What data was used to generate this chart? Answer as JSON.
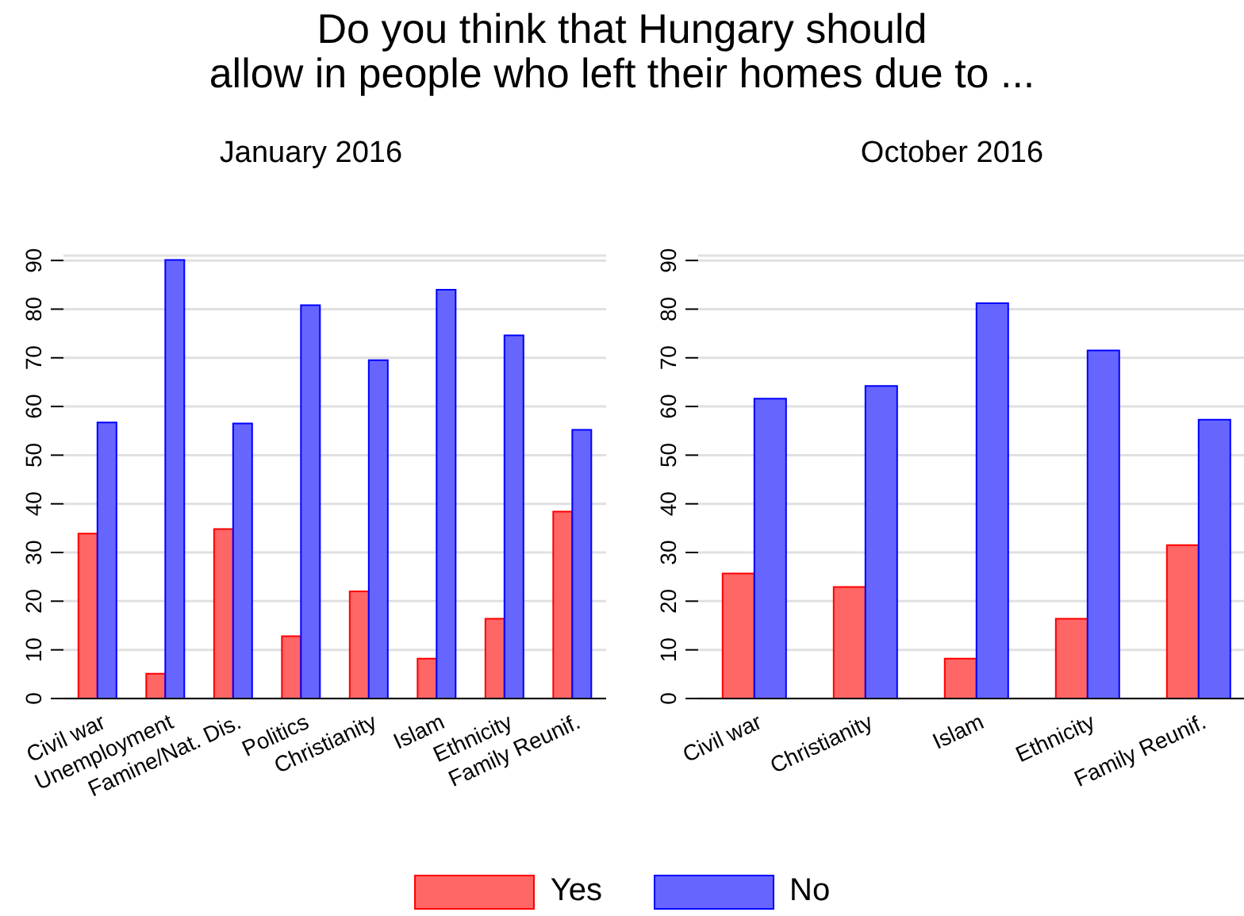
{
  "chart_data": [
    {
      "type": "bar",
      "title": "Do you think that Hungary should\nallow in people who left their homes due to ...",
      "subtitle": "January 2016",
      "categories": [
        "Civil war",
        "Unemployment",
        "Famine/Nat. Dis.",
        "Politics",
        "Christianity",
        "Islam",
        "Ethnicity",
        "Family Reunif."
      ],
      "series": [
        {
          "name": "Yes",
          "color": "#ff6666",
          "values": [
            33.9,
            5.1,
            34.8,
            12.8,
            22.0,
            8.2,
            16.4,
            38.4
          ]
        },
        {
          "name": "No",
          "color": "#6666ff",
          "values": [
            56.7,
            90.1,
            56.5,
            80.8,
            69.5,
            84.0,
            74.6,
            55.2
          ]
        }
      ],
      "ylim": [
        0,
        91
      ],
      "yticks": [
        0,
        10,
        20,
        30,
        40,
        50,
        60,
        70,
        80,
        90
      ],
      "grid": "y",
      "legend": "bottom"
    },
    {
      "type": "bar",
      "subtitle": "October 2016",
      "categories": [
        "Civil war",
        "Christianity",
        "Islam",
        "Ethnicity",
        "Family Reunif."
      ],
      "series": [
        {
          "color": "#ff6666",
          "values": [
            25.7,
            22.9,
            8.2,
            16.4,
            31.5
          ]
        },
        {
          "color": "#6666ff",
          "values": [
            61.6,
            64.2,
            81.2,
            71.5,
            57.3
          ]
        }
      ],
      "ylim": [
        0,
        91
      ],
      "yticks": [
        0,
        10,
        20,
        30,
        40,
        50,
        60,
        70,
        80,
        90
      ],
      "grid": "y"
    }
  ]
}
